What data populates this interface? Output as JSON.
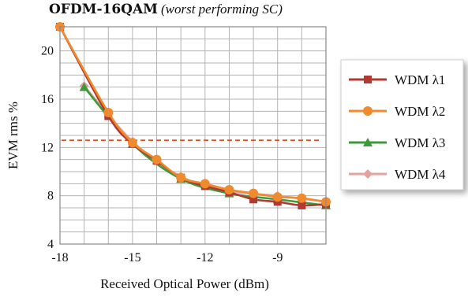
{
  "chart_data": {
    "type": "line",
    "title": "OFDM-16QAM",
    "subtitle": "(worst performing SC)",
    "xlabel": "Received Optical Power (dBm)",
    "ylabel": "EVM rms %",
    "xlim": [
      -18,
      -7
    ],
    "ylim": [
      4,
      22
    ],
    "x_ticks": [
      "-18",
      "-15",
      "-12",
      "-9"
    ],
    "y_ticks": [
      "4",
      "8",
      "12",
      "16",
      "20"
    ],
    "grid": true,
    "legend_position": "right",
    "threshold": {
      "y": 12.6,
      "color": "#e8502a",
      "style": "dashed"
    },
    "series": [
      {
        "name": "WDM λ1",
        "color": "#b03a32",
        "marker": "square",
        "x": [
          -18,
          -16,
          -15,
          -14,
          -13,
          -12,
          -11,
          -10,
          -9,
          -8,
          -7
        ],
        "y": [
          22.0,
          14.6,
          12.3,
          10.9,
          9.5,
          8.8,
          8.3,
          7.7,
          7.5,
          7.2,
          7.3
        ]
      },
      {
        "name": "WDM λ2",
        "color": "#ef8a2f",
        "marker": "circle",
        "x": [
          -18,
          -16,
          -15,
          -14,
          -13,
          -12,
          -11,
          -10,
          -9,
          -8,
          -7
        ],
        "y": [
          22.0,
          14.9,
          12.4,
          11.0,
          9.5,
          9.0,
          8.5,
          8.2,
          7.9,
          7.8,
          7.5
        ]
      },
      {
        "name": "WDM λ3",
        "color": "#3b9a3c",
        "marker": "triangle",
        "x": [
          -17,
          -15,
          -13,
          -11,
          -9,
          -7
        ],
        "y": [
          17.0,
          12.3,
          9.4,
          8.2,
          7.7,
          7.2
        ]
      },
      {
        "name": "WDM λ4",
        "color": "#e3a39c",
        "marker": "diamond",
        "x": [
          -17,
          -15,
          -13,
          -11,
          -9,
          -7
        ],
        "y": [
          17.1,
          12.5,
          9.6,
          8.4,
          8.0,
          7.5
        ]
      }
    ]
  }
}
